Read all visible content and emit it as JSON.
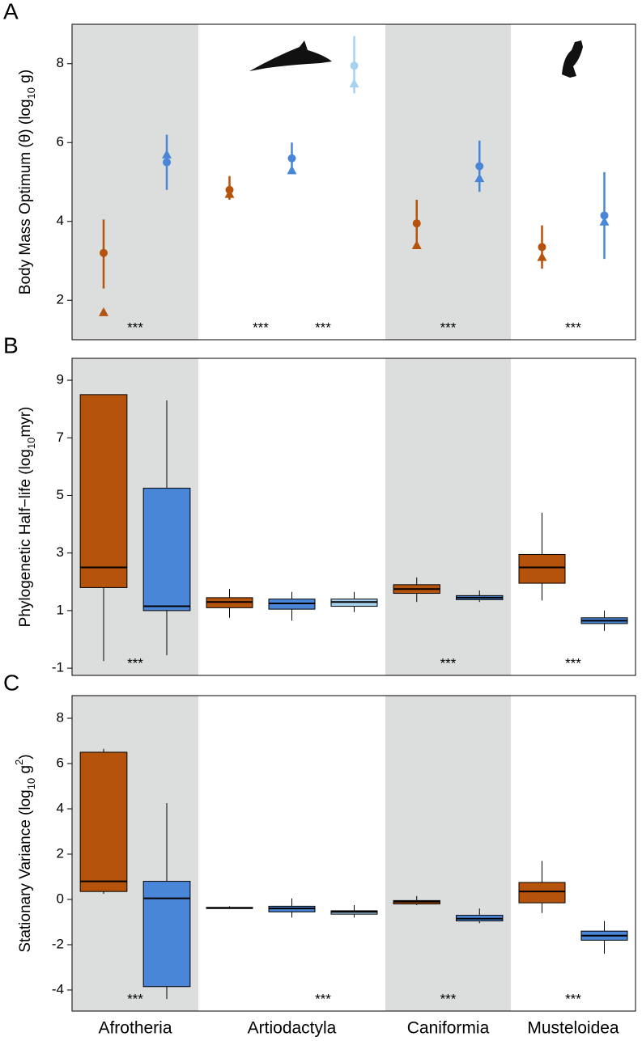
{
  "chart_data": [
    {
      "type": "pointrange",
      "panel_label": "A",
      "ylabel": [
        {
          "text": "Body Mass Optimum (θ) (log"
        },
        {
          "text": "10",
          "shift": "sub"
        },
        {
          "text": " g)"
        }
      ],
      "ylim": [
        1.0,
        9.0
      ],
      "yticks": [
        2,
        4,
        6,
        8
      ],
      "groups": [
        {
          "shade": "#dcdedd",
          "stars": [
            "***"
          ],
          "items": [
            {
              "color": "#b5530d",
              "circle": 3.2,
              "triangle": 1.7,
              "low": 2.3,
              "high": 4.05
            },
            {
              "color": "#4a86d8",
              "circle": 5.5,
              "triangle": 5.7,
              "low": 4.8,
              "high": 6.2
            }
          ]
        },
        {
          "shade": null,
          "stars": [
            "***",
            "***"
          ],
          "items": [
            {
              "color": "#b5530d",
              "circle": 4.8,
              "triangle": 4.7,
              "low": 4.55,
              "high": 5.15
            },
            {
              "color": "#4a86d8",
              "circle": 5.6,
              "triangle": 5.3,
              "low": 5.25,
              "high": 6.0
            },
            {
              "color": "#a6d2ef",
              "circle": 7.95,
              "triangle": 7.5,
              "low": 7.25,
              "high": 8.7
            }
          ]
        },
        {
          "shade": "#dcdedd",
          "stars": [
            "***"
          ],
          "items": [
            {
              "color": "#b5530d",
              "circle": 3.95,
              "triangle": 3.4,
              "low": 3.4,
              "high": 4.55
            },
            {
              "color": "#4a86d8",
              "circle": 5.4,
              "triangle": 5.1,
              "low": 4.75,
              "high": 6.05
            }
          ]
        },
        {
          "shade": null,
          "stars": [
            "***"
          ],
          "items": [
            {
              "color": "#b5530d",
              "circle": 3.35,
              "triangle": 3.1,
              "low": 2.8,
              "high": 3.9
            },
            {
              "color": "#4a86d8",
              "circle": 4.15,
              "triangle": 4.0,
              "low": 3.05,
              "high": 5.25
            }
          ]
        }
      ]
    },
    {
      "type": "box",
      "panel_label": "B",
      "ylabel": [
        {
          "text": "Phylogenetic Half−life (log"
        },
        {
          "text": "10",
          "shift": "sub"
        },
        {
          "text": "myr)"
        }
      ],
      "ylim": [
        -1.25,
        9.76
      ],
      "yticks": [
        -1,
        1,
        3,
        5,
        7,
        9
      ],
      "groups": [
        {
          "shade": "#dcdedd",
          "stars": [
            "***"
          ],
          "items": [
            {
              "color": "#b5530d",
              "low": -0.75,
              "q1": 1.8,
              "median": 2.5,
              "q3": 8.5,
              "high": 8.5
            },
            {
              "color": "#4a86d8",
              "low": -0.55,
              "q1": 1.0,
              "median": 1.15,
              "q3": 5.25,
              "high": 8.3
            }
          ]
        },
        {
          "shade": null,
          "stars": [
            null,
            null
          ],
          "items": [
            {
              "color": "#b5530d",
              "low": 0.75,
              "q1": 1.1,
              "median": 1.3,
              "q3": 1.45,
              "high": 1.75
            },
            {
              "color": "#4a86d8",
              "low": 0.65,
              "q1": 1.05,
              "median": 1.25,
              "q3": 1.4,
              "high": 1.65
            },
            {
              "color": "#a6d2ef",
              "low": 0.95,
              "q1": 1.15,
              "median": 1.3,
              "q3": 1.4,
              "high": 1.65
            }
          ]
        },
        {
          "shade": "#dcdedd",
          "stars": [
            "***"
          ],
          "items": [
            {
              "color": "#b5530d",
              "low": 1.3,
              "q1": 1.6,
              "median": 1.75,
              "q3": 1.9,
              "high": 2.15
            },
            {
              "color": "#4a86d8",
              "low": 1.3,
              "q1": 1.38,
              "median": 1.45,
              "q3": 1.52,
              "high": 1.7
            }
          ]
        },
        {
          "shade": null,
          "stars": [
            "***"
          ],
          "items": [
            {
              "color": "#b5530d",
              "low": 1.35,
              "q1": 1.95,
              "median": 2.5,
              "q3": 2.95,
              "high": 4.4
            },
            {
              "color": "#4a86d8",
              "low": 0.3,
              "q1": 0.55,
              "median": 0.65,
              "q3": 0.75,
              "high": 1.0
            }
          ]
        }
      ]
    },
    {
      "type": "box",
      "panel_label": "C",
      "ylabel": [
        {
          "text": "Stationary Variance (log"
        },
        {
          "text": "10",
          "shift": "sub"
        },
        {
          "text": " g"
        },
        {
          "text": "2",
          "shift": "super"
        },
        {
          "text": ")"
        }
      ],
      "ylim": [
        -4.93,
        9.0
      ],
      "yticks": [
        -4,
        -2,
        0,
        2,
        4,
        6,
        8
      ],
      "categories": [
        "Afrotheria",
        "Artiodactyla",
        "Caniformia",
        "Musteloidea"
      ],
      "groups": [
        {
          "shade": "#dcdedd",
          "stars": [
            "***"
          ],
          "items": [
            {
              "color": "#b5530d",
              "low": 0.25,
              "q1": 0.35,
              "median": 0.8,
              "q3": 6.5,
              "high": 6.65
            },
            {
              "color": "#4a86d8",
              "low": -4.4,
              "q1": -3.85,
              "median": 0.05,
              "q3": 0.8,
              "high": 4.25
            }
          ]
        },
        {
          "shade": null,
          "stars": [
            null,
            "***"
          ],
          "items": [
            {
              "color": "#b5530d",
              "low": -0.42,
              "q1": -0.4,
              "median": -0.38,
              "q3": -0.35,
              "high": -0.3
            },
            {
              "color": "#4a86d8",
              "low": -0.8,
              "q1": -0.55,
              "median": -0.4,
              "q3": -0.3,
              "high": 0.05
            },
            {
              "color": "#a6d2ef",
              "low": -0.8,
              "q1": -0.65,
              "median": -0.55,
              "q3": -0.5,
              "high": -0.25
            }
          ]
        },
        {
          "shade": "#dcdedd",
          "stars": [
            "***"
          ],
          "items": [
            {
              "color": "#b5530d",
              "low": -0.25,
              "q1": -0.2,
              "median": -0.1,
              "q3": -0.05,
              "high": 0.15
            },
            {
              "color": "#4a86d8",
              "low": -1.05,
              "q1": -0.95,
              "median": -0.85,
              "q3": -0.7,
              "high": -0.4
            }
          ]
        },
        {
          "shade": null,
          "stars": [
            "***"
          ],
          "items": [
            {
              "color": "#b5530d",
              "low": -0.6,
              "q1": -0.15,
              "median": 0.35,
              "q3": 0.75,
              "high": 1.7
            },
            {
              "color": "#4a86d8",
              "low": -2.4,
              "q1": -1.8,
              "median": -1.6,
              "q3": -1.4,
              "high": -0.95
            }
          ]
        }
      ]
    }
  ]
}
